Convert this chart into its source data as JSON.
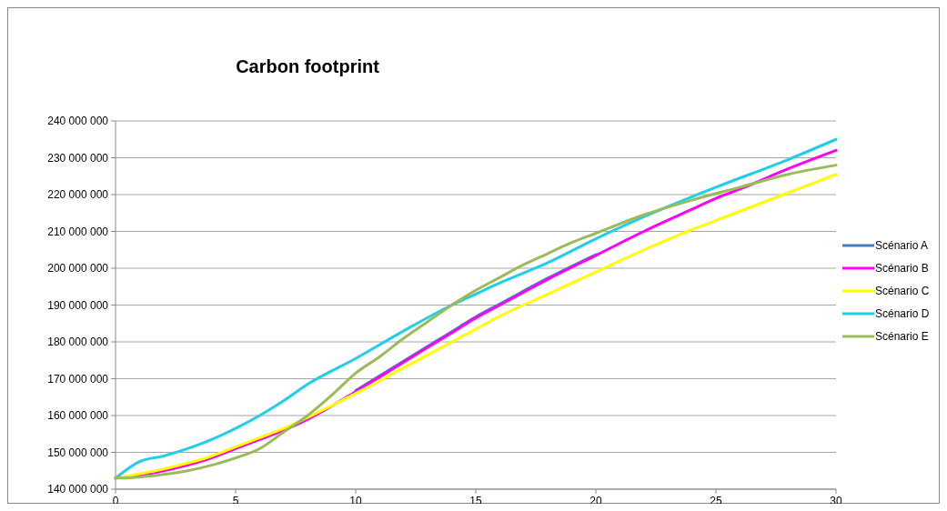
{
  "chart_data": {
    "type": "line",
    "title": "Carbon footprint",
    "xlim": [
      0,
      30
    ],
    "xticks": [
      0,
      5,
      10,
      15,
      20,
      25,
      30
    ],
    "ylim": [
      140000000,
      240000000
    ],
    "yticks": [
      {
        "value": 140000000,
        "label": "140 000 000"
      },
      {
        "value": 150000000,
        "label": "150 000 000"
      },
      {
        "value": 160000000,
        "label": "160 000 000"
      },
      {
        "value": 170000000,
        "label": "170 000 000"
      },
      {
        "value": 180000000,
        "label": "180 000 000"
      },
      {
        "value": 190000000,
        "label": "190 000 000"
      },
      {
        "value": 200000000,
        "label": "200 000 000"
      },
      {
        "value": 210000000,
        "label": "210 000 000"
      },
      {
        "value": 220000000,
        "label": "220 000 000"
      },
      {
        "value": 230000000,
        "label": "230 000 000"
      },
      {
        "value": 240000000,
        "label": "240 000 000"
      }
    ],
    "grid": "y",
    "legend": "right",
    "marker": "none",
    "line_style": "solid",
    "series": [
      {
        "name": "Scénario A",
        "color": "#4a7ebb",
        "x": [
          10,
          12,
          14,
          15,
          16,
          18,
          20
        ],
        "values": [
          166800000,
          174800000,
          182800000,
          186800000,
          190300000,
          197300000,
          203700000
        ]
      },
      {
        "name": "Scénario B",
        "color": "#ff00ff",
        "x": [
          0,
          2,
          4,
          5,
          6,
          7,
          8,
          10,
          12,
          14,
          15,
          16,
          18,
          20,
          22,
          24,
          25,
          26,
          28,
          30
        ],
        "values": [
          143000000,
          145000000,
          148500000,
          151000000,
          153500000,
          156000000,
          159000000,
          166500000,
          174500000,
          182500000,
          186500000,
          190000000,
          197000000,
          203500000,
          210000000,
          216000000,
          219000000,
          221500000,
          227000000,
          232000000
        ]
      },
      {
        "name": "Scénario C",
        "color": "#ffff00",
        "x": [
          0,
          2,
          4,
          5,
          6,
          7,
          8,
          10,
          12,
          14,
          15,
          16,
          18,
          20,
          22,
          24,
          25,
          26,
          28,
          30
        ],
        "values": [
          143000000,
          145500000,
          149000000,
          151500000,
          154000000,
          156500000,
          159500000,
          166000000,
          173000000,
          180000000,
          183500000,
          187000000,
          193000000,
          199000000,
          205000000,
          210500000,
          213000000,
          215500000,
          220500000,
          225500000
        ]
      },
      {
        "name": "Scénario D",
        "color": "#1fcfe8",
        "x": [
          0,
          1,
          2,
          3,
          4,
          5,
          6,
          7,
          8,
          10,
          12,
          14,
          15,
          16,
          18,
          20,
          22,
          25,
          28,
          30
        ],
        "values": [
          143000000,
          147500000,
          149000000,
          151000000,
          153500000,
          156500000,
          160000000,
          164000000,
          168500000,
          175500000,
          183000000,
          190000000,
          193000000,
          196000000,
          201500000,
          208000000,
          214000000,
          222000000,
          229500000,
          235000000
        ]
      },
      {
        "name": "Scénario E",
        "color": "#9bbb59",
        "x": [
          0,
          1,
          2,
          3,
          4,
          5,
          6,
          7,
          8,
          9,
          10,
          11,
          12,
          13,
          14,
          15,
          16,
          17,
          18,
          19,
          20,
          22,
          24,
          26,
          28,
          30
        ],
        "values": [
          143000000,
          143300000,
          144000000,
          145000000,
          146500000,
          148500000,
          151000000,
          155500000,
          160000000,
          165500000,
          171500000,
          176000000,
          181000000,
          185500000,
          190000000,
          194000000,
          197500000,
          201000000,
          204000000,
          207000000,
          209500000,
          214500000,
          218500000,
          222000000,
          225500000,
          228000000
        ]
      }
    ]
  }
}
